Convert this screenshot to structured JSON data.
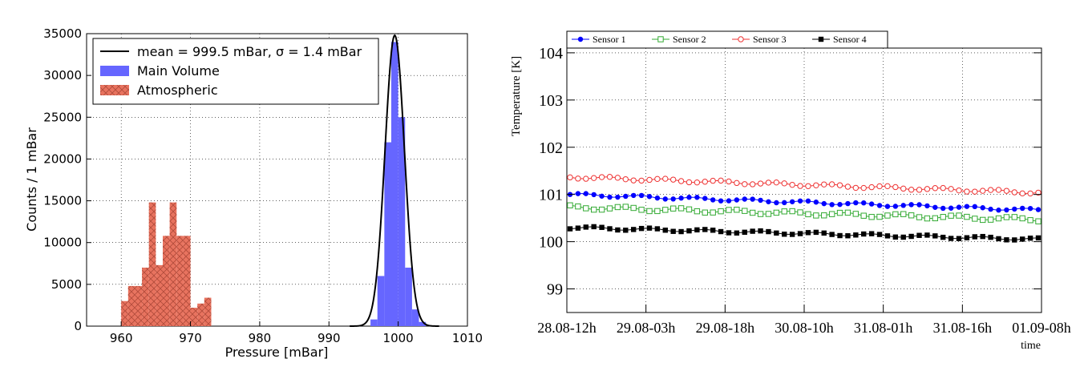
{
  "chart_data": [
    {
      "type": "histogram",
      "xlabel": "Pressure [mBar]",
      "ylabel": "Counts / 1 mBar",
      "xlim": [
        955,
        1010
      ],
      "ylim": [
        0,
        35000
      ],
      "x_ticks": [
        960,
        970,
        980,
        990,
        1000,
        1010
      ],
      "y_ticks": [
        0,
        5000,
        10000,
        15000,
        20000,
        25000,
        30000,
        35000
      ],
      "grid": true,
      "legend_position": "top-left",
      "legend": {
        "fit_label": "mean = 999.5 mBar, σ = 1.4 mBar",
        "main_label": "Main Volume",
        "atm_label": "Atmospheric"
      },
      "series": [
        {
          "name": "Atmospheric",
          "color": "#e8735f",
          "hatch": "cross",
          "bins": [
            [
              960,
              961,
              3000
            ],
            [
              961,
              962,
              4800
            ],
            [
              962,
              963,
              4800
            ],
            [
              963,
              964,
              7000
            ],
            [
              964,
              965,
              14800
            ],
            [
              965,
              966,
              7300
            ],
            [
              966,
              967,
              10800
            ],
            [
              967,
              968,
              14800
            ],
            [
              968,
              969,
              10800
            ],
            [
              969,
              970,
              10800
            ],
            [
              970,
              971,
              2200
            ],
            [
              971,
              972,
              2700
            ],
            [
              972,
              973,
              3400
            ]
          ]
        },
        {
          "name": "Main Volume",
          "color": "#6666ff",
          "bins": [
            [
              996,
              997,
              800
            ],
            [
              997,
              998,
              6000
            ],
            [
              998,
              999,
              22000
            ],
            [
              999,
              1000,
              34000
            ],
            [
              1000,
              1001,
              25000
            ],
            [
              1001,
              1002,
              7000
            ],
            [
              1002,
              1003,
              2000
            ],
            [
              1003,
              1004,
              500
            ]
          ]
        },
        {
          "name": "mean = 999.5 mBar, σ = 1.4 mBar",
          "type": "gaussian",
          "color": "#000000",
          "mean": 999.5,
          "sigma": 1.4,
          "amplitude": 34800
        }
      ]
    },
    {
      "type": "line",
      "ylabel": "Temperature [K]",
      "xlabel": "time",
      "ylim": [
        98.5,
        104.1
      ],
      "y_ticks": [
        99,
        100,
        101,
        102,
        103,
        104
      ],
      "x_tick_labels": [
        "28.08-12h",
        "29.08-03h",
        "29.08-18h",
        "30.08-10h",
        "31.08-01h",
        "31.08-16h",
        "01.09-08h"
      ],
      "grid": true,
      "legend_position": "top",
      "n_points": 60,
      "series": [
        {
          "name": "Sensor 1",
          "color": "#0000ff",
          "marker": "filled-circle",
          "start": 101.0,
          "end": 100.67,
          "wiggle": 0.03
        },
        {
          "name": "Sensor 2",
          "color": "#33aa33",
          "marker": "open-square",
          "start": 100.73,
          "end": 100.47,
          "wiggle": 0.04
        },
        {
          "name": "Sensor 3",
          "color": "#ee3333",
          "marker": "open-circle",
          "start": 101.37,
          "end": 101.04,
          "wiggle": 0.03
        },
        {
          "name": "Sensor 4",
          "color": "#000000",
          "marker": "filled-square",
          "start": 100.3,
          "end": 100.05,
          "wiggle": 0.03
        }
      ]
    }
  ]
}
